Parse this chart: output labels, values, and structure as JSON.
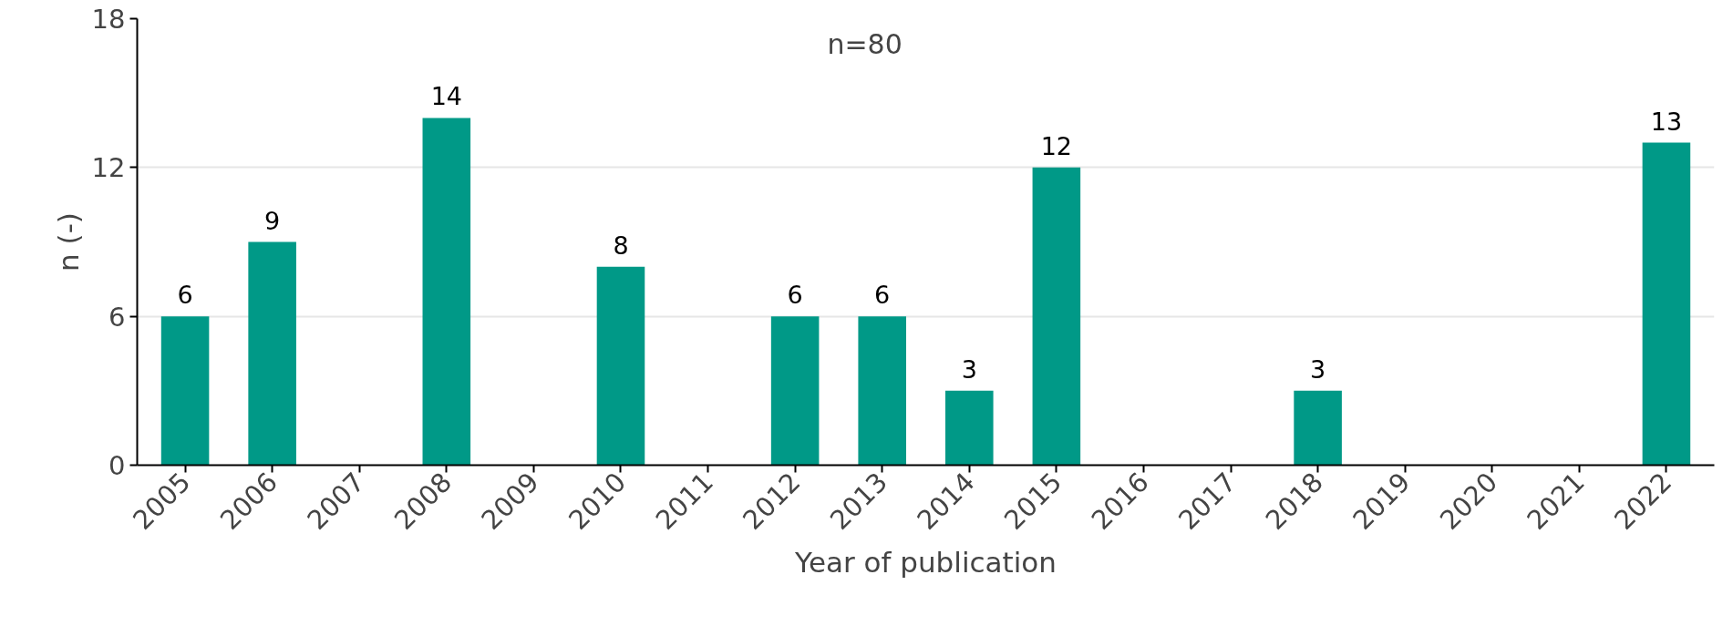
{
  "chart_data": {
    "type": "bar",
    "xlabel": "Year of publication",
    "ylabel": "n (-)",
    "categories": [
      "2005",
      "2006",
      "2007",
      "2008",
      "2009",
      "2010",
      "2011",
      "2012",
      "2013",
      "2014",
      "2015",
      "2016",
      "2017",
      "2018",
      "2019",
      "2020",
      "2021",
      "2022"
    ],
    "values": [
      6,
      9,
      0,
      14,
      0,
      8,
      0,
      6,
      6,
      3,
      12,
      0,
      0,
      3,
      0,
      0,
      0,
      13
    ],
    "value_labels": [
      "6",
      "9",
      null,
      "14",
      null,
      "8",
      null,
      "6",
      "6",
      "3",
      "12",
      null,
      null,
      "3",
      null,
      null,
      null,
      "13"
    ],
    "color": "#009987",
    "ylim": [
      0,
      18
    ],
    "yticks": [
      0,
      6,
      12,
      18
    ],
    "grid": "y",
    "annotations": [
      "n=80"
    ]
  }
}
